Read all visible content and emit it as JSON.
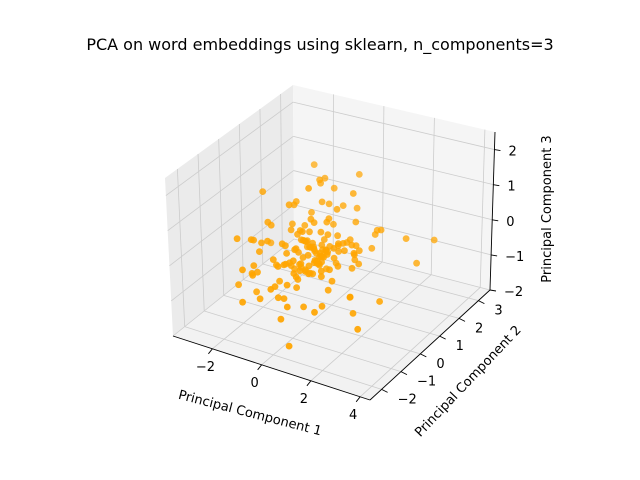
{
  "chart_data": {
    "type": "scatter",
    "title": "PCA on word embeddings using sklearn, n_components=3",
    "xlabel": "Principal Component 1",
    "ylabel": "Principal Component 2",
    "zlabel": "Principal Component 3",
    "xlim": [
      -3.6,
      4.4
    ],
    "ylim": [
      -2.6,
      3.6
    ],
    "zlim": [
      -2.0,
      2.5
    ],
    "xticks": [
      -2,
      0,
      2,
      4
    ],
    "yticks": [
      -2,
      -1,
      0,
      1,
      2,
      3
    ],
    "zticks": [
      -2,
      -1,
      0,
      1,
      2
    ],
    "xtick_labels": [
      "−2",
      "0",
      "2",
      "4"
    ],
    "ytick_labels": [
      "−2",
      "−1",
      "0",
      "1",
      "2",
      "3"
    ],
    "ztick_labels": [
      "−2",
      "−1",
      "0",
      "1",
      "2"
    ],
    "grid": true,
    "point_color": "#ffa500",
    "pane_color": "#f2f2f2",
    "grid_color": "#cccccc",
    "series": [
      {
        "points": [
          [
            -2.05,
            2.69,
            0.87
          ],
          [
            -0.26,
            -1.28,
            -1.37
          ],
          [
            -2.68,
            1.26,
            -0.86
          ],
          [
            3.57,
            1.77,
            0.23
          ],
          [
            1.58,
            -0.06,
            -0.93
          ],
          [
            -0.04,
            0.31,
            -0.47
          ],
          [
            -0.66,
            0.65,
            1.42
          ],
          [
            -1.25,
            1.54,
            0.18
          ],
          [
            -0.72,
            2.04,
            0.75
          ],
          [
            -0.8,
            -1.12,
            -0.7
          ],
          [
            2.91,
            -0.21,
            -0.69
          ],
          [
            -1.55,
            -0.34,
            0.17
          ],
          [
            -1.03,
            1.68,
            1.1
          ],
          [
            -0.42,
            -0.92,
            -0.98
          ],
          [
            -2.0,
            -0.08,
            -0.1
          ],
          [
            1.19,
            -1.0,
            -0.81
          ],
          [
            -2.79,
            -0.26,
            -1.4
          ],
          [
            -0.35,
            1.53,
            0.02
          ],
          [
            3.23,
            1.29,
            -0.27
          ],
          [
            -0.75,
            -0.37,
            0.0
          ],
          [
            -1.29,
            0.44,
            0.91
          ],
          [
            0.07,
            -1.37,
            -0.9
          ],
          [
            -2.0,
            0.42,
            0.18
          ],
          [
            -1.12,
            -0.26,
            -0.94
          ],
          [
            -0.12,
            -0.06,
            -0.07
          ],
          [
            -0.52,
            0.52,
            0.25
          ],
          [
            -1.26,
            2.24,
            0.84
          ],
          [
            -0.53,
            0.09,
            -0.47
          ],
          [
            0.5,
            0.06,
            0.14
          ],
          [
            -0.93,
            0.42,
            0.14
          ],
          [
            1.49,
            1.46,
            0.25
          ],
          [
            1.49,
            0.54,
            0.11
          ],
          [
            -1.89,
            -1.19,
            -1.28
          ],
          [
            2.44,
            -1.13,
            -0.2
          ],
          [
            0.32,
            0.39,
            -0.1
          ],
          [
            0.31,
            1.92,
            0.43
          ],
          [
            -0.4,
            0.0,
            0.53
          ],
          [
            -0.38,
            0.5,
            -0.04
          ],
          [
            -0.99,
            1.0,
            -0.51
          ],
          [
            -0.54,
            0.81,
            -0.45
          ],
          [
            1.21,
            0.51,
            0.23
          ],
          [
            -1.97,
            -0.37,
            -1.38
          ],
          [
            2.66,
            1.47,
            0.24
          ],
          [
            -0.97,
            -0.15,
            0.07
          ],
          [
            -0.15,
            2.61,
            0.99
          ],
          [
            -2.11,
            -0.05,
            -0.39
          ],
          [
            -1.04,
            -0.23,
            0.15
          ],
          [
            0.0,
            0.75,
            0.53
          ],
          [
            1.09,
            -1.26,
            -0.88
          ],
          [
            1.17,
            -0.46,
            -0.35
          ],
          [
            1.0,
            -0.44,
            -0.66
          ],
          [
            0.84,
            -0.17,
            -0.23
          ],
          [
            -0.98,
            -0.52,
            -0.36
          ],
          [
            -0.68,
            0.3,
            0.09
          ],
          [
            2.33,
            -0.85,
            -0.84
          ],
          [
            -0.31,
            -0.58,
            -0.02
          ],
          [
            0.26,
            -0.68,
            -0.16
          ],
          [
            0.12,
            0.58,
            -0.72
          ],
          [
            0.85,
            0.88,
            0.13
          ],
          [
            0.42,
            -0.16,
            -0.19
          ],
          [
            -0.62,
            1.29,
            0.73
          ],
          [
            -0.66,
            -0.91,
            -1.01
          ],
          [
            -1.84,
            -0.77,
            -0.63
          ],
          [
            0.37,
            0.76,
            -0.59
          ],
          [
            0.56,
            -0.36,
            -0.02
          ],
          [
            -1.17,
            -0.36,
            -0.43
          ],
          [
            -2.68,
            0.84,
            0.82
          ],
          [
            -0.98,
            1.67,
            1.02
          ],
          [
            -1.48,
            -0.81,
            -1.27
          ],
          [
            0.85,
            -0.49,
            0.29
          ],
          [
            0.36,
            -0.9,
            -1.06
          ],
          [
            -0.66,
            0.0,
            -0.02
          ],
          [
            -0.91,
            -0.01,
            -0.48
          ],
          [
            1.37,
            1.51,
            0.08
          ],
          [
            -2.69,
            -0.46,
            0.05
          ],
          [
            -0.03,
            1.63,
            0.58
          ],
          [
            -0.53,
            1.54,
            0.57
          ],
          [
            1.35,
            0.34,
            -0.33
          ],
          [
            -0.5,
            0.73,
            0.42
          ],
          [
            -0.28,
            -0.12,
            -0.14
          ],
          [
            1.17,
            0.18,
            0.22
          ],
          [
            -1.67,
            1.29,
            0.53
          ],
          [
            -0.66,
            0.38,
            0.04
          ],
          [
            1.29,
            0.54,
            -0.05
          ],
          [
            0.38,
            -1.67,
            -1.82
          ],
          [
            -0.42,
            0.15,
            0.18
          ],
          [
            -0.06,
            0.57,
            -0.06
          ],
          [
            -0.38,
            -0.81,
            -0.63
          ],
          [
            -0.37,
            -0.48,
            -0.45
          ],
          [
            0.59,
            1.37,
            1.18
          ],
          [
            -0.71,
            0.19,
            -0.23
          ],
          [
            -2.49,
            0.13,
            -0.22
          ],
          [
            1.72,
            1.37,
            0.35
          ],
          [
            0.21,
            1.01,
            0.82
          ],
          [
            -1.98,
            -0.5,
            -0.56
          ],
          [
            -0.08,
            0.55,
            0.32
          ],
          [
            -2.19,
            -0.37,
            0.09
          ],
          [
            0.56,
            0.42,
            -0.24
          ],
          [
            0.7,
            0.46,
            0.13
          ],
          [
            -1.6,
            1.0,
            0.03
          ],
          [
            -1.01,
            0.66,
            0.12
          ],
          [
            0.63,
            0.99,
            -0.05
          ],
          [
            -0.2,
            -0.55,
            -0.79
          ],
          [
            -1.18,
            1.11,
            0.02
          ],
          [
            -0.68,
            -0.51,
            -0.23
          ],
          [
            1.46,
            1.22,
            -0.16
          ],
          [
            1.43,
            0.34,
            0.12
          ],
          [
            -0.88,
            -0.8,
            -0.79
          ],
          [
            -0.02,
            0.4,
            -0.32
          ],
          [
            -1.6,
            1.09,
            0.54
          ],
          [
            0.05,
            0.34,
            -0.16
          ],
          [
            -1.87,
            -0.45,
            -0.75
          ],
          [
            0.49,
            0.15,
            -0.02
          ],
          [
            0.1,
            -0.23,
            -0.46
          ],
          [
            -0.12,
            0.68,
            -0.27
          ],
          [
            -1.22,
            -0.46,
            -0.24
          ],
          [
            0.42,
            -0.08,
            0.03
          ],
          [
            -2.06,
            0.32,
            0.3
          ],
          [
            0.26,
            0.48,
            0.35
          ],
          [
            -0.26,
            0.4,
            -0.08
          ],
          [
            -0.26,
            0.55,
            -0.34
          ],
          [
            0.63,
            -0.33,
            -0.24
          ],
          [
            0.81,
            -0.55,
            -0.25
          ],
          [
            -1.9,
            -1.18,
            -0.35
          ],
          [
            -0.45,
            0.5,
            0.64
          ],
          [
            0.53,
            0.68,
            0.05
          ],
          [
            -0.39,
            0.41,
            -0.12
          ],
          [
            -0.76,
            0.71,
            -0.15
          ],
          [
            0.28,
            0.13,
            -0.27
          ],
          [
            2.72,
            -1.1,
            -1.09
          ],
          [
            -0.75,
            -0.13,
            -0.47
          ],
          [
            -0.85,
            0.17,
            -0.73
          ],
          [
            0.05,
            -0.04,
            -0.58
          ],
          [
            0.47,
            0.71,
            0.25
          ],
          [
            1.44,
            0.57,
            -0.3
          ],
          [
            -0.14,
            0.27,
            -0.05
          ],
          [
            0.11,
            0.0,
            -0.2
          ],
          [
            -0.01,
            0.87,
            0.57
          ],
          [
            -0.18,
            0.46,
            -0.5
          ],
          [
            -0.14,
            0.8,
            -0.03
          ],
          [
            1.0,
            0.06,
            -0.21
          ],
          [
            -0.44,
            -0.01,
            -0.51
          ],
          [
            -0.02,
            0.73,
            -0.27
          ],
          [
            0.13,
            -0.06,
            -0.23
          ],
          [
            0.25,
            0.21,
            -0.15
          ],
          [
            -0.81,
            -0.43,
            -0.32
          ],
          [
            1.24,
            0.69,
            0.13
          ],
          [
            1.3,
            0.55,
            -0.2
          ],
          [
            0.68,
            0.25,
            0.15
          ],
          [
            0.7,
            1.36,
            0.38
          ],
          [
            -0.02,
            -0.61,
            -0.23
          ],
          [
            0.56,
            0.65,
            -0.16
          ],
          [
            -1.32,
            0.58,
            0.11
          ],
          [
            0.85,
            0.52,
            0.2
          ],
          [
            -1.86,
            -0.71,
            -0.72
          ],
          [
            -0.56,
            -0.19,
            0.06
          ],
          [
            0.0,
            -0.17,
            -0.3
          ],
          [
            -0.18,
            -0.51,
            -0.57
          ],
          [
            -0.47,
            0.28,
            0.09
          ],
          [
            -0.05,
            -0.28,
            -0.37
          ],
          [
            0.39,
            0.41,
            0.07
          ],
          [
            -0.72,
            0.77,
            -0.35
          ],
          [
            -0.35,
            -0.21,
            -0.31
          ],
          [
            -0.16,
            -0.62,
            -0.44
          ],
          [
            0.17,
            -0.4,
            -0.38
          ]
        ]
      }
    ]
  }
}
